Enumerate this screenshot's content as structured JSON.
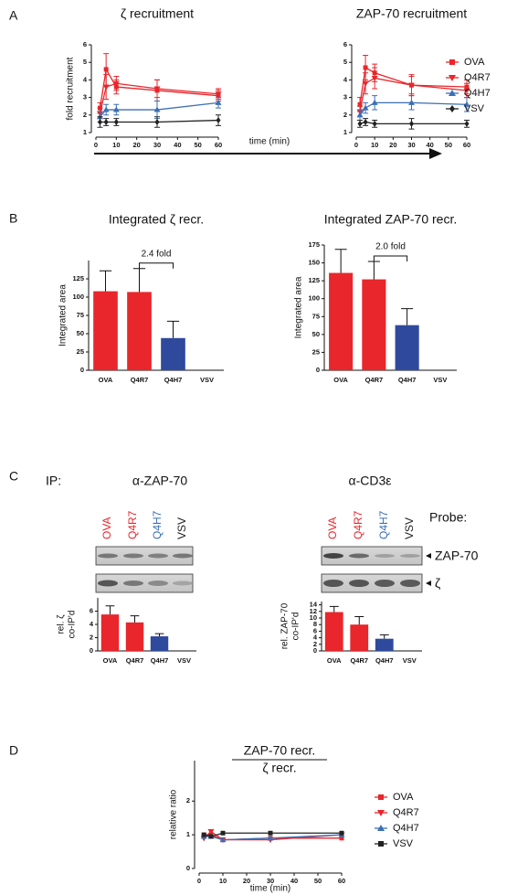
{
  "panel_labels": [
    "A",
    "B",
    "C",
    "D"
  ],
  "blots": {
    "ip_label": "IP:",
    "probe_label": "Probe:",
    "probes": [
      "ZAP-70",
      "ζ"
    ],
    "lane_colors": [
      "#e8262b",
      "#e8262b",
      "#3b6fb6",
      "#222222"
    ],
    "panels": [
      {
        "antibody": "α-ZAP-70",
        "lanes": [
          "OVA",
          "Q4R7",
          "Q4H7",
          "VSV"
        ]
      },
      {
        "antibody": "α-CD3ε",
        "lanes": [
          "OVA",
          "Q4R7",
          "Q4H7",
          "VSV"
        ]
      }
    ]
  },
  "chart_data": [
    {
      "type": "line",
      "title": "ζ recruitment",
      "ylabel": "fold recruitment",
      "xlabel": "time (min)",
      "x": [
        2,
        5,
        10,
        30,
        60
      ],
      "xlim": [
        0,
        60
      ],
      "xticks": [
        0,
        10,
        20,
        30,
        40,
        50,
        60
      ],
      "ylim": [
        1,
        6
      ],
      "yticks": [
        1,
        2,
        3,
        4,
        5,
        6
      ],
      "series": [
        {
          "name": "OVA",
          "color": "#e8262b",
          "marker": "square",
          "values": [
            2.4,
            4.6,
            3.6,
            3.4,
            3.1
          ],
          "errors": [
            0.3,
            0.9,
            0.4,
            0.6,
            0.3
          ]
        },
        {
          "name": "Q4R7",
          "color": "#e8262b",
          "marker": "triangle-down",
          "values": [
            2.1,
            3.6,
            3.8,
            3.5,
            3.2
          ],
          "errors": [
            0.3,
            0.7,
            0.4,
            0.5,
            0.3
          ]
        },
        {
          "name": "Q4H7",
          "color": "#3b6fb6",
          "marker": "triangle-up",
          "values": [
            1.9,
            2.3,
            2.3,
            2.3,
            2.7
          ],
          "errors": [
            0.3,
            0.3,
            0.3,
            0.5,
            0.3
          ]
        },
        {
          "name": "VSV",
          "color": "#222222",
          "marker": "diamond",
          "values": [
            1.6,
            1.6,
            1.6,
            1.6,
            1.7
          ],
          "errors": [
            0.3,
            0.2,
            0.2,
            0.3,
            0.3
          ]
        }
      ]
    },
    {
      "type": "line",
      "title": "ZAP-70 recruitment",
      "x": [
        2,
        5,
        10,
        30,
        60
      ],
      "xlim": [
        0,
        60
      ],
      "xticks": [
        0,
        10,
        20,
        30,
        40,
        50,
        60
      ],
      "ylim": [
        1,
        6
      ],
      "yticks": [
        1,
        2,
        3,
        4,
        5,
        6
      ],
      "legend": "right",
      "series": [
        {
          "name": "OVA",
          "color": "#e8262b",
          "marker": "square",
          "values": [
            2.6,
            4.7,
            4.4,
            3.7,
            3.6
          ],
          "errors": [
            0.4,
            0.7,
            0.5,
            0.6,
            0.4
          ]
        },
        {
          "name": "Q4R7",
          "color": "#e8262b",
          "marker": "triangle-down",
          "values": [
            2.2,
            3.8,
            4.1,
            3.7,
            3.4
          ],
          "errors": [
            0.3,
            0.6,
            0.6,
            0.5,
            0.4
          ]
        },
        {
          "name": "Q4H7",
          "color": "#3b6fb6",
          "marker": "triangle-up",
          "values": [
            2.0,
            2.4,
            2.7,
            2.7,
            2.6
          ],
          "errors": [
            0.3,
            0.3,
            0.4,
            0.4,
            0.4
          ]
        },
        {
          "name": "VSV",
          "color": "#222222",
          "marker": "diamond",
          "values": [
            1.5,
            1.6,
            1.5,
            1.5,
            1.5
          ],
          "errors": [
            0.2,
            0.2,
            0.2,
            0.3,
            0.2
          ]
        }
      ]
    },
    {
      "type": "bar",
      "title": "Integrated ζ recr.",
      "ylabel": "Integrated area",
      "categories": [
        "OVA",
        "Q4R7",
        "Q4H7",
        "VSV"
      ],
      "values": [
        108,
        107,
        44,
        0
      ],
      "errors": [
        28,
        32,
        23,
        0
      ],
      "colors": [
        "#e8262b",
        "#e8262b",
        "#2f4a9c",
        "#2f4a9c"
      ],
      "ylim": [
        0,
        150
      ],
      "yticks": [
        0,
        25,
        50,
        75,
        100,
        125
      ],
      "annotation": "2.4 fold"
    },
    {
      "type": "bar",
      "title": "Integrated ZAP-70 recr.",
      "ylabel": "Integrated area",
      "categories": [
        "OVA",
        "Q4R7",
        "Q4H7",
        "VSV"
      ],
      "values": [
        136,
        127,
        63,
        0
      ],
      "errors": [
        33,
        25,
        23,
        0
      ],
      "colors": [
        "#e8262b",
        "#e8262b",
        "#2f4a9c",
        "#2f4a9c"
      ],
      "ylim": [
        0,
        175
      ],
      "yticks": [
        0,
        25,
        50,
        75,
        100,
        125,
        150,
        175
      ],
      "annotation": "2.0 fold"
    },
    {
      "type": "bar",
      "ylabel": [
        "rel. ζ",
        "co-IP'd"
      ],
      "categories": [
        "OVA",
        "Q4R7",
        "Q4H7",
        "VSV"
      ],
      "values": [
        5.5,
        4.3,
        2.2,
        0
      ],
      "errors": [
        1.3,
        1.0,
        0.4,
        0
      ],
      "colors": [
        "#e8262b",
        "#e8262b",
        "#2f4a9c",
        "#2f4a9c"
      ],
      "ylim": [
        0,
        8
      ],
      "yticks": [
        0,
        2,
        4,
        6
      ]
    },
    {
      "type": "bar",
      "ylabel": [
        "rel. ZAP-70",
        "co-IP'd"
      ],
      "categories": [
        "OVA",
        "Q4R7",
        "Q4H7",
        "VSV"
      ],
      "values": [
        11.8,
        8.0,
        3.7,
        0
      ],
      "errors": [
        1.7,
        2.4,
        1.2,
        0
      ],
      "colors": [
        "#e8262b",
        "#e8262b",
        "#2f4a9c",
        "#2f4a9c"
      ],
      "ylim": [
        0,
        15
      ],
      "yticks": [
        0,
        2,
        4,
        6,
        8,
        10,
        12,
        14
      ]
    },
    {
      "type": "line",
      "title": [
        "ZAP-70 recr.",
        "ζ recr."
      ],
      "ylabel": "relative ratio",
      "xlabel": "time (min)",
      "x": [
        2,
        5,
        10,
        30,
        60
      ],
      "xlim": [
        0,
        60
      ],
      "xticks": [
        0,
        10,
        20,
        30,
        40,
        50,
        60
      ],
      "ylim": [
        0,
        3.2
      ],
      "yticks": [
        0,
        1,
        2
      ],
      "legend": "right",
      "series": [
        {
          "name": "OVA",
          "color": "#e8262b",
          "marker": "square",
          "values": [
            1.0,
            1.0,
            0.85,
            0.9,
            0.9
          ]
        },
        {
          "name": "Q4R7",
          "color": "#e8262b",
          "marker": "triangle-down",
          "values": [
            0.9,
            1.1,
            0.85,
            0.85,
            1.0
          ]
        },
        {
          "name": "Q4H7",
          "color": "#3b6fb6",
          "marker": "triangle-up",
          "values": [
            0.95,
            0.95,
            0.85,
            0.9,
            1.0
          ]
        },
        {
          "name": "VSV",
          "color": "#222222",
          "marker": "square",
          "values": [
            1.0,
            0.95,
            1.05,
            1.05,
            1.05
          ]
        }
      ]
    }
  ]
}
